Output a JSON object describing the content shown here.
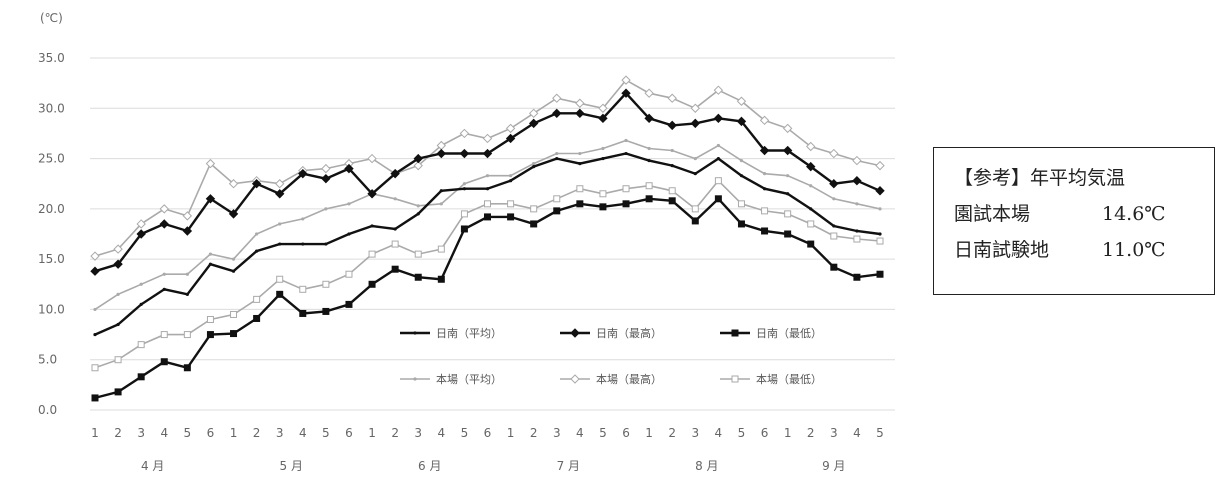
{
  "chart_data": {
    "type": "line",
    "ylabel": "(℃)",
    "ylim": [
      0,
      35
    ],
    "yticks": [
      "0.0",
      "5.0",
      "10.0",
      "15.0",
      "20.0",
      "25.0",
      "30.0",
      "35.0"
    ],
    "grid": true,
    "x_ticks": [
      "1",
      "2",
      "3",
      "4",
      "5",
      "6",
      "1",
      "2",
      "3",
      "4",
      "5",
      "6",
      "1",
      "2",
      "3",
      "4",
      "5",
      "6",
      "1",
      "2",
      "3",
      "4",
      "5",
      "6",
      "1",
      "2",
      "3",
      "4",
      "5",
      "6",
      "1",
      "2",
      "3",
      "4",
      "5"
    ],
    "months": [
      {
        "label": "4 月",
        "start": 0,
        "end": 5
      },
      {
        "label": "5 月",
        "start": 6,
        "end": 11
      },
      {
        "label": "6 月",
        "start": 12,
        "end": 17
      },
      {
        "label": "7 月",
        "start": 18,
        "end": 23
      },
      {
        "label": "8 月",
        "start": 24,
        "end": 29
      },
      {
        "label": "9 月",
        "start": 30,
        "end": 34
      }
    ],
    "legend_position": "lower-right",
    "series": [
      {
        "name": "日南（平均）",
        "color": "#111111",
        "marker": "none",
        "values": [
          7.5,
          8.5,
          10.5,
          12.0,
          11.5,
          14.5,
          13.8,
          15.8,
          16.5,
          16.5,
          16.5,
          17.5,
          18.3,
          18.0,
          19.5,
          21.8,
          22.0,
          22.0,
          22.8,
          24.2,
          25.0,
          24.5,
          25.0,
          25.5,
          24.8,
          24.3,
          23.5,
          25.0,
          23.3,
          22.0,
          21.5,
          20.0,
          18.3,
          17.8,
          17.5
        ]
      },
      {
        "name": "日南（最高）",
        "color": "#111111",
        "marker": "diamond",
        "values": [
          13.8,
          14.5,
          17.5,
          18.5,
          17.8,
          21.0,
          19.5,
          22.5,
          21.5,
          23.5,
          23.0,
          24.0,
          21.5,
          23.5,
          25.0,
          25.5,
          25.5,
          25.5,
          27.0,
          28.5,
          29.5,
          29.5,
          29.0,
          31.5,
          29.0,
          28.3,
          28.5,
          29.0,
          28.7,
          25.8,
          25.8,
          24.2,
          22.5,
          22.8,
          21.8
        ]
      },
      {
        "name": "日南（最低）",
        "color": "#111111",
        "marker": "square",
        "values": [
          1.2,
          1.8,
          3.3,
          4.8,
          4.2,
          7.5,
          7.6,
          9.1,
          11.5,
          9.6,
          9.8,
          10.5,
          12.5,
          14.0,
          13.2,
          13.0,
          18.0,
          19.2,
          19.2,
          18.5,
          19.8,
          20.5,
          20.2,
          20.5,
          21.0,
          20.8,
          18.8,
          21.0,
          18.5,
          17.8,
          17.5,
          16.5,
          14.2,
          13.2,
          13.5
        ]
      },
      {
        "name": "本場（平均）",
        "color": "#aaaaaa",
        "marker": "none",
        "values": [
          10.0,
          11.5,
          12.5,
          13.5,
          13.5,
          15.5,
          15.0,
          17.5,
          18.5,
          19.0,
          20.0,
          20.5,
          21.5,
          21.0,
          20.3,
          20.5,
          22.5,
          23.3,
          23.3,
          24.5,
          25.5,
          25.5,
          26.0,
          26.8,
          26.0,
          25.8,
          25.0,
          26.3,
          24.8,
          23.5,
          23.3,
          22.3,
          21.0,
          20.5,
          20.0
        ]
      },
      {
        "name": "本場（最高）",
        "color": "#aaaaaa",
        "marker": "diamond",
        "values": [
          15.3,
          16.0,
          18.5,
          20.0,
          19.3,
          24.5,
          22.5,
          22.8,
          22.5,
          23.8,
          24.0,
          24.5,
          25.0,
          23.5,
          24.3,
          26.3,
          27.5,
          27.0,
          28.0,
          29.5,
          31.0,
          30.5,
          30.0,
          32.8,
          31.5,
          31.0,
          30.0,
          31.8,
          30.7,
          28.8,
          28.0,
          26.2,
          25.5,
          24.8,
          24.3
        ]
      },
      {
        "name": "本場（最低）",
        "color": "#aaaaaa",
        "marker": "square",
        "values": [
          4.2,
          5.0,
          6.5,
          7.5,
          7.5,
          9.0,
          9.5,
          11.0,
          13.0,
          12.0,
          12.5,
          13.5,
          15.5,
          16.5,
          15.5,
          16.0,
          19.5,
          20.5,
          20.5,
          20.0,
          21.0,
          22.0,
          21.5,
          22.0,
          22.3,
          21.8,
          20.0,
          22.8,
          20.5,
          19.8,
          19.5,
          18.5,
          17.3,
          17.0,
          16.8
        ]
      }
    ]
  },
  "reference_box": {
    "title": "【参考】年平均気温",
    "rows": [
      {
        "label": "園試本場",
        "value": "14.6℃"
      },
      {
        "label": "日南試験地",
        "value": "11.0℃"
      }
    ]
  }
}
